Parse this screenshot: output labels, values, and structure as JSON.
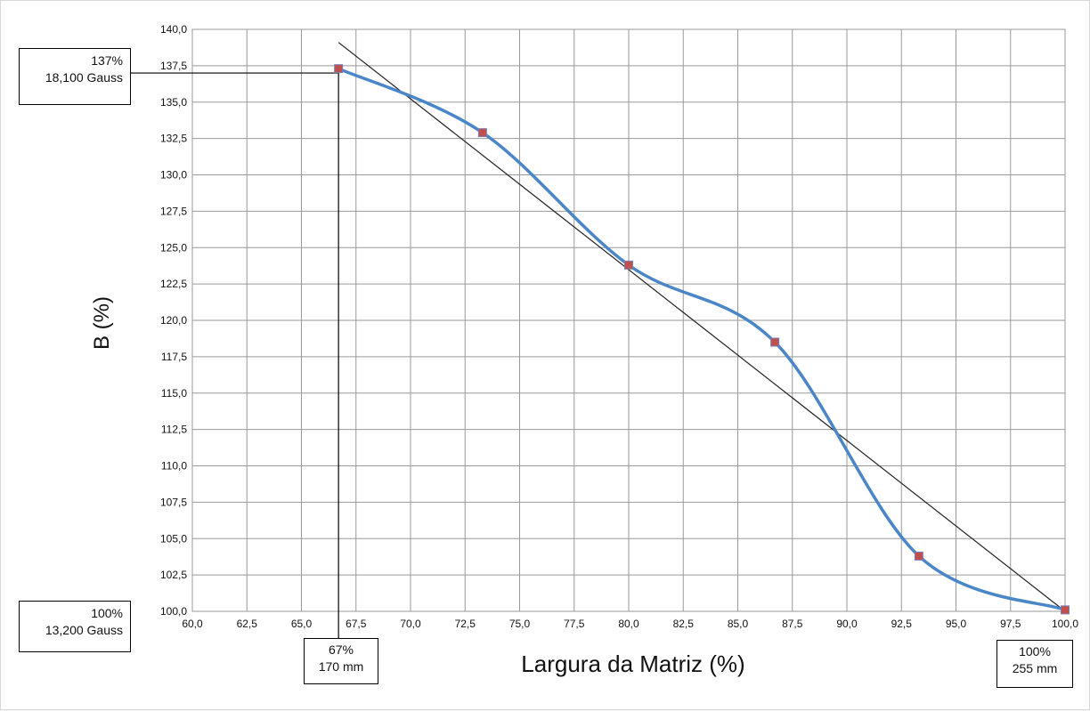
{
  "chart_data": {
    "type": "line",
    "title": "",
    "xlabel": "Largura da Matriz (%)",
    "ylabel": "B (%)",
    "xlim": [
      60,
      100
    ],
    "ylim": [
      100,
      140
    ],
    "grid": true,
    "x_ticks": [
      "60,0",
      "62,5",
      "65,0",
      "67,5",
      "70,0",
      "72,5",
      "75,0",
      "77,5",
      "80,0",
      "82,5",
      "85,0",
      "87,5",
      "90,0",
      "92,5",
      "95,0",
      "97,5",
      "100,0"
    ],
    "y_ticks": [
      "100,0",
      "102,5",
      "105,0",
      "107,5",
      "110,0",
      "112,5",
      "115,0",
      "117,5",
      "120,0",
      "122,5",
      "125,0",
      "127,5",
      "130,0",
      "132,5",
      "135,0",
      "137,5",
      "140,0"
    ],
    "series": [
      {
        "color": "#4a86c8",
        "marker_color": "#c0504d",
        "points": [
          {
            "x": 66.7,
            "y": 137.3
          },
          {
            "x": 73.3,
            "y": 132.9
          },
          {
            "x": 80.0,
            "y": 123.8
          },
          {
            "x": 86.7,
            "y": 118.5
          },
          {
            "x": 93.3,
            "y": 103.8
          },
          {
            "x": 100.0,
            "y": 100.1
          }
        ]
      }
    ],
    "trendline": {
      "color": "#222222",
      "from": {
        "x": 66.7,
        "y": 139.1
      },
      "to": {
        "x": 100.0,
        "y": 100.0
      }
    },
    "guides": {
      "color": "#000000",
      "x": 66.7,
      "y": 137.0
    },
    "annotations": {
      "y_top": {
        "line1": "137%",
        "line2": "18,100 Gauss"
      },
      "y_bottom": {
        "line1": "100%",
        "line2": "13,200 Gauss"
      },
      "x_left": {
        "line1": "67%",
        "line2": "170 mm"
      },
      "x_right": {
        "line1": "100%",
        "line2": "255 mm"
      }
    }
  }
}
